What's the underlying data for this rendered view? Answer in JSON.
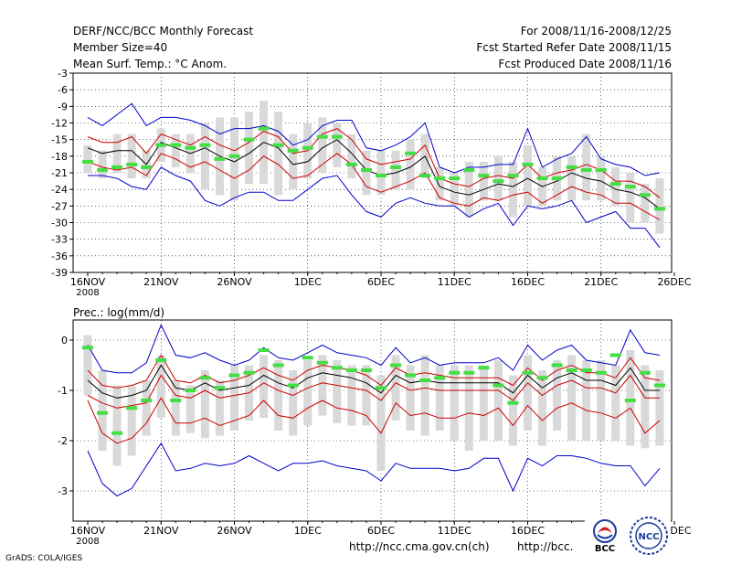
{
  "header": {
    "left": [
      "DERF/NCC/BCC Monthly Forecast",
      "Member Size=40",
      "Mean Surf. Temp.: °C Anom."
    ],
    "right": [
      "For 2008/11/16-2008/12/25",
      "Fcst Started Refer Date 2008/11/15",
      "Fcst Produced Date 2008/11/16"
    ]
  },
  "footer": {
    "credit": "GrADS: COLA/IGES",
    "url_ncc": "http://ncc.cma.gov.cn(ch)",
    "url_bcc": "http://bcc.",
    "logo_bcc": "BCC",
    "logo_ncc": "NCC"
  },
  "colors": {
    "envelope": "#0000cc",
    "spread": "#cc0000",
    "mean": "#000000",
    "box": "#d9d9d9",
    "marker": "#44dd44",
    "grid": "#000000"
  },
  "chart_data": [
    {
      "type": "line",
      "title": "Mean Surf. Temp.: °C Anom.",
      "xlabel": "",
      "ylabel": "",
      "x": [
        "11/16",
        "11/17",
        "11/18",
        "11/19",
        "11/20",
        "11/21",
        "11/22",
        "11/23",
        "11/24",
        "11/25",
        "11/26",
        "11/27",
        "11/28",
        "11/29",
        "11/30",
        "12/01",
        "12/02",
        "12/03",
        "12/04",
        "12/05",
        "12/06",
        "12/07",
        "12/08",
        "12/09",
        "12/10",
        "12/11",
        "12/12",
        "12/13",
        "12/14",
        "12/15",
        "12/16",
        "12/17",
        "12/18",
        "12/19",
        "12/20",
        "12/21",
        "12/22",
        "12/23",
        "12/24",
        "12/25"
      ],
      "xticks": [
        "16NOV",
        "21NOV",
        "26NOV",
        "1DEC",
        "6DEC",
        "11DEC",
        "16DEC",
        "21DEC",
        "26DEC"
      ],
      "xsublabel": "2008",
      "ylim": [
        -39,
        -3
      ],
      "yticks": [
        -3,
        -6,
        -9,
        -12,
        -15,
        -18,
        -21,
        -24,
        -27,
        -30,
        -33,
        -36,
        -39
      ],
      "series": [
        {
          "name": "max",
          "values": [
            -11,
            -12.5,
            -10.5,
            -8.5,
            -12.5,
            -11,
            -11,
            -11.5,
            -12.5,
            -14,
            -13,
            -13,
            -12.5,
            -13.5,
            -16,
            -15,
            -12.5,
            -11.5,
            -11.5,
            -16.5,
            -17,
            -16,
            -14.5,
            -12,
            -20,
            -21,
            -20,
            -20,
            -19.5,
            -19.5,
            -13,
            -20,
            -18.5,
            -17.5,
            -14.5,
            -18.5,
            -19.5,
            -20,
            -21.5,
            -21
          ]
        },
        {
          "name": "p90",
          "values": [
            -14.5,
            -15.5,
            -15.5,
            -14.5,
            -17.5,
            -14,
            -15,
            -16,
            -14.5,
            -16,
            -17,
            -15.5,
            -13.5,
            -14.5,
            -17.5,
            -17,
            -14,
            -13,
            -15,
            -18.5,
            -19.5,
            -19,
            -18.5,
            -16,
            -22,
            -23,
            -23.5,
            -22,
            -21.5,
            -22,
            -19.5,
            -22,
            -21,
            -20.5,
            -19.5,
            -20.5,
            -22.5,
            -22.5,
            -23.5,
            -25.5
          ]
        },
        {
          "name": "mean",
          "values": [
            -16.5,
            -17.5,
            -17,
            -17,
            -19.5,
            -15.5,
            -16.5,
            -17.5,
            -16.5,
            -18,
            -19,
            -17.5,
            -15.5,
            -16.5,
            -19.5,
            -19,
            -16.5,
            -15,
            -17.5,
            -20.5,
            -21.5,
            -21,
            -20,
            -18,
            -23.5,
            -24.5,
            -25,
            -24,
            -23,
            -23.5,
            -22,
            -23.5,
            -22.5,
            -21,
            -22,
            -22.5,
            -24,
            -24.5,
            -25.5,
            -27.5
          ]
        },
        {
          "name": "p10",
          "values": [
            -19,
            -20,
            -20.5,
            -20,
            -21.5,
            -17.5,
            -18.5,
            -20,
            -19,
            -20.5,
            -22,
            -20.5,
            -18,
            -19.5,
            -22,
            -21.5,
            -19.5,
            -17.5,
            -19.5,
            -23.5,
            -24.5,
            -23.5,
            -22.5,
            -21,
            -25.5,
            -26.5,
            -27,
            -25.5,
            -26,
            -25,
            -24.5,
            -26.5,
            -25,
            -23.5,
            -24.5,
            -25,
            -26.5,
            -26.5,
            -28,
            -29.5
          ]
        },
        {
          "name": "min",
          "values": [
            -21.5,
            -21.5,
            -22,
            -23.5,
            -24,
            -20,
            -21.5,
            -22.5,
            -26,
            -27,
            -25.5,
            -24.5,
            -24.5,
            -26,
            -26,
            -24,
            -22,
            -21.5,
            -25,
            -28,
            -29,
            -26.5,
            -25.5,
            -26.5,
            -27,
            -27,
            -29,
            -27.5,
            -26.5,
            -30.5,
            -27,
            -27.5,
            -27,
            -26,
            -30,
            -29,
            -28,
            -31,
            -31,
            -34.5
          ]
        }
      ],
      "box_low": [
        -21,
        -22,
        -21,
        -22,
        -22,
        -19,
        -20,
        -21,
        -24,
        -25,
        -26,
        -23,
        -23,
        -25,
        -24,
        -22,
        -21,
        -20,
        -22,
        -25,
        -25,
        -24,
        -24,
        -22,
        -26,
        -27,
        -29,
        -26,
        -26,
        -29,
        -27,
        -27,
        -26,
        -26,
        -26,
        -26,
        -27,
        -30,
        -30,
        -32
      ],
      "box_high": [
        -16,
        -17,
        -14,
        -14,
        -17,
        -13,
        -14,
        -14,
        -12,
        -11,
        -11,
        -10,
        -8,
        -10,
        -14,
        -12,
        -11,
        -12,
        -14,
        -17,
        -17,
        -17,
        -15,
        -14,
        -20,
        -21,
        -19,
        -19,
        -18,
        -19,
        -16,
        -20,
        -18,
        -18,
        -14,
        -18,
        -20,
        -21,
        -23,
        -22
      ],
      "marker": [
        -19,
        -20.5,
        -20,
        -19.5,
        -20,
        -16,
        -16,
        -16.5,
        -16,
        -18.5,
        -18,
        -15,
        -13,
        -16,
        -17,
        -16.5,
        -14.5,
        -14.5,
        -19.5,
        -20.5,
        -21.5,
        -20,
        -17.5,
        -21.5,
        -22,
        -22,
        -20.5,
        -21.5,
        -22.5,
        -21.5,
        -19.5,
        -22,
        -22,
        -20,
        -20.5,
        -20.5,
        -23,
        -23.5,
        -25,
        -27.5
      ]
    },
    {
      "type": "line",
      "title": "Prec.: log(mm/d)",
      "xlabel": "",
      "ylabel": "",
      "x": [
        "11/16",
        "11/17",
        "11/18",
        "11/19",
        "11/20",
        "11/21",
        "11/22",
        "11/23",
        "11/24",
        "11/25",
        "11/26",
        "11/27",
        "11/28",
        "11/29",
        "11/30",
        "12/01",
        "12/02",
        "12/03",
        "12/04",
        "12/05",
        "12/06",
        "12/07",
        "12/08",
        "12/09",
        "12/10",
        "12/11",
        "12/12",
        "12/13",
        "12/14",
        "12/15",
        "12/16",
        "12/17",
        "12/18",
        "12/19",
        "12/20",
        "12/21",
        "12/22",
        "12/23",
        "12/24",
        "12/25"
      ],
      "xticks": [
        "16NOV",
        "21NOV",
        "26NOV",
        "1DEC",
        "6DEC",
        "11DEC",
        "16DEC",
        "21DEC",
        "26DEC"
      ],
      "xsublabel": "2008",
      "ylim": [
        -3.6,
        0.4
      ],
      "yticks": [
        0,
        -1,
        -2,
        -3
      ],
      "series": [
        {
          "name": "max",
          "values": [
            -0.1,
            -0.6,
            -0.65,
            -0.65,
            -0.45,
            0.3,
            -0.3,
            -0.35,
            -0.25,
            -0.4,
            -0.5,
            -0.4,
            -0.15,
            -0.35,
            -0.4,
            -0.25,
            -0.1,
            -0.25,
            -0.3,
            -0.35,
            -0.5,
            -0.15,
            -0.45,
            -0.35,
            -0.5,
            -0.45,
            -0.45,
            -0.45,
            -0.35,
            -0.6,
            -0.1,
            -0.4,
            -0.2,
            -0.1,
            -0.4,
            -0.45,
            -0.5,
            0.2,
            -0.25,
            -0.3
          ]
        },
        {
          "name": "p90",
          "values": [
            -0.6,
            -0.9,
            -0.95,
            -0.9,
            -0.8,
            -0.3,
            -0.8,
            -0.85,
            -0.7,
            -0.85,
            -0.8,
            -0.7,
            -0.55,
            -0.7,
            -0.8,
            -0.6,
            -0.5,
            -0.55,
            -0.6,
            -0.7,
            -0.9,
            -0.55,
            -0.7,
            -0.65,
            -0.7,
            -0.75,
            -0.75,
            -0.75,
            -0.75,
            -0.9,
            -0.55,
            -0.8,
            -0.6,
            -0.5,
            -0.65,
            -0.65,
            -0.75,
            -0.35,
            -0.75,
            -0.8
          ]
        },
        {
          "name": "mean",
          "values": [
            -0.8,
            -1.05,
            -1.15,
            -1.1,
            -1.0,
            -0.5,
            -0.95,
            -1.0,
            -0.85,
            -1.0,
            -0.95,
            -0.9,
            -0.7,
            -0.85,
            -0.95,
            -0.75,
            -0.65,
            -0.7,
            -0.75,
            -0.85,
            -1.05,
            -0.7,
            -0.85,
            -0.8,
            -0.85,
            -0.85,
            -0.85,
            -0.85,
            -0.85,
            -1.05,
            -0.7,
            -0.95,
            -0.75,
            -0.65,
            -0.8,
            -0.8,
            -0.9,
            -0.55,
            -1.0,
            -1.0
          ]
        },
        {
          "name": "p10",
          "values": [
            -1.1,
            -1.25,
            -1.35,
            -1.3,
            -1.25,
            -0.7,
            -1.1,
            -1.15,
            -1.0,
            -1.15,
            -1.1,
            -1.05,
            -0.85,
            -1.0,
            -1.1,
            -0.95,
            -0.85,
            -0.9,
            -0.95,
            -1.0,
            -1.2,
            -0.85,
            -1.0,
            -0.95,
            -1.0,
            -1.0,
            -1.0,
            -1.0,
            -1.0,
            -1.2,
            -0.85,
            -1.1,
            -0.9,
            -0.8,
            -0.95,
            -0.95,
            -1.05,
            -0.7,
            -1.15,
            -1.15
          ]
        },
        {
          "name": "p02",
          "values": [
            -1.2,
            -1.85,
            -2.05,
            -1.95,
            -1.65,
            -1.15,
            -1.65,
            -1.65,
            -1.55,
            -1.7,
            -1.6,
            -1.5,
            -1.2,
            -1.5,
            -1.55,
            -1.35,
            -1.2,
            -1.35,
            -1.4,
            -1.5,
            -1.85,
            -1.25,
            -1.5,
            -1.45,
            -1.55,
            -1.55,
            -1.45,
            -1.5,
            -1.35,
            -1.7,
            -1.3,
            -1.6,
            -1.35,
            -1.25,
            -1.4,
            -1.45,
            -1.55,
            -1.35,
            -1.85,
            -1.6
          ]
        },
        {
          "name": "min",
          "values": [
            -2.2,
            -2.85,
            -3.1,
            -2.95,
            -2.5,
            -2.05,
            -2.6,
            -2.55,
            -2.45,
            -2.5,
            -2.45,
            -2.3,
            -2.45,
            -2.6,
            -2.45,
            -2.45,
            -2.4,
            -2.5,
            -2.55,
            -2.6,
            -2.8,
            -2.45,
            -2.55,
            -2.55,
            -2.55,
            -2.6,
            -2.55,
            -2.35,
            -2.35,
            -3.0,
            -2.35,
            -2.5,
            -2.3,
            -2.3,
            -2.35,
            -2.45,
            -2.5,
            -2.5,
            -2.9,
            -2.55
          ]
        }
      ],
      "box_low": [
        -1.1,
        -2.2,
        -2.5,
        -2.3,
        -1.9,
        -1.55,
        -1.9,
        -1.85,
        -1.95,
        -1.9,
        -1.8,
        -1.6,
        -1.55,
        -1.8,
        -1.9,
        -1.7,
        -1.5,
        -1.65,
        -1.7,
        -1.7,
        -2.6,
        -1.6,
        -1.8,
        -1.9,
        -1.8,
        -2.0,
        -2.2,
        -2.0,
        -2.0,
        -2.1,
        -1.8,
        -2.1,
        -1.8,
        -2.0,
        -2.0,
        -2.0,
        -2.0,
        -2.1,
        -2.15,
        -2.1
      ],
      "box_high": [
        0.1,
        -0.6,
        -0.9,
        -0.9,
        -0.8,
        -0.3,
        -0.8,
        -0.9,
        -0.6,
        -0.8,
        -0.5,
        -0.5,
        -0.3,
        -0.4,
        -0.6,
        -0.4,
        -0.3,
        -0.4,
        -0.5,
        -0.5,
        -0.7,
        -0.3,
        -0.5,
        -0.3,
        -0.5,
        -0.5,
        -0.5,
        -0.5,
        -0.4,
        -0.7,
        -0.3,
        -0.6,
        -0.4,
        -0.3,
        -0.4,
        -0.4,
        -0.5,
        -0.2,
        -0.5,
        -0.6
      ],
      "marker": [
        -0.15,
        -1.45,
        -1.85,
        -1.35,
        -1.2,
        -0.4,
        -1.2,
        -1.0,
        -0.75,
        -0.95,
        -0.7,
        -0.65,
        -0.2,
        -0.5,
        -0.9,
        -0.35,
        -0.45,
        -0.55,
        -0.6,
        -0.6,
        -0.95,
        -0.5,
        -0.7,
        -0.8,
        -0.75,
        -0.65,
        -0.65,
        -0.55,
        -0.9,
        -1.25,
        -0.65,
        -0.75,
        -0.5,
        -0.6,
        -0.6,
        -0.65,
        -0.3,
        -1.2,
        -0.65,
        -0.9
      ]
    }
  ]
}
